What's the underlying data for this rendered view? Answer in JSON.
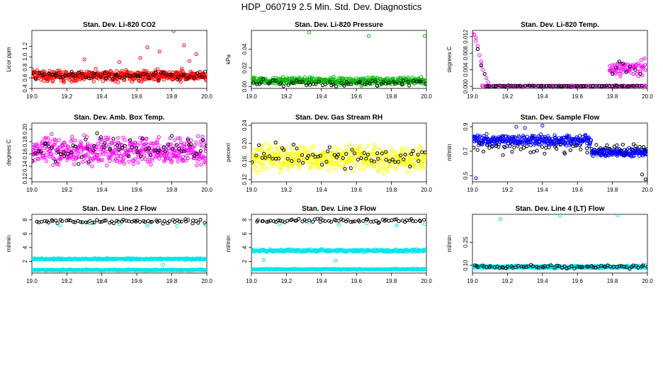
{
  "figure": {
    "title": "HDP_060719  2.5 Min. Std. Dev. Diagnostics"
  },
  "chart_data": [
    {
      "type": "scatter",
      "title": "Stan. Dev. Li-820 CO2",
      "ylabel": "Licor ppm",
      "xlim": [
        19.0,
        20.0
      ],
      "ylim": [
        0.4,
        1.5
      ],
      "xticks": [
        "19.0",
        "19.2",
        "19.4",
        "19.6",
        "19.8",
        "20.0"
      ],
      "xtick_values": [
        19.0,
        19.2,
        19.4,
        19.6,
        19.8,
        20.0
      ],
      "yticks": [
        "0.4",
        "0.6",
        "0.8",
        "1.0",
        "1.2"
      ],
      "ytick_values": [
        0.4,
        0.6,
        0.8,
        1.0,
        1.2
      ],
      "series": [
        {
          "name": "dense",
          "color": "#ff0000",
          "gen": {
            "n": 500,
            "base": 0.64,
            "spread": 0.08,
            "seed": 1
          }
        },
        {
          "name": "sparse",
          "color": "#000000",
          "gen": {
            "n": 60,
            "base": 0.65,
            "spread": 0.07,
            "seed": 2
          }
        },
        {
          "name": "outliers",
          "color": "#ff0000",
          "x": [
            19.81,
            19.66,
            19.87,
            19.73,
            19.94,
            19.62,
            19.9,
            19.5,
            19.3
          ],
          "values": [
            1.49,
            1.18,
            1.22,
            1.1,
            1.05,
            0.98,
            0.92,
            0.9,
            0.95
          ]
        }
      ]
    },
    {
      "type": "scatter",
      "title": "Stan. Dev. Li-820 Pressure",
      "ylabel": "kPa",
      "xlim": [
        19.0,
        20.0
      ],
      "ylim": [
        -0.002,
        0.06
      ],
      "xticks": [
        "19.0",
        "19.2",
        "19.4",
        "19.6",
        "19.8",
        "20.0"
      ],
      "xtick_values": [
        19.0,
        19.2,
        19.4,
        19.6,
        19.8,
        20.0
      ],
      "yticks": [
        "0.00",
        "0.02",
        "0.04"
      ],
      "ytick_values": [
        0.0,
        0.02,
        0.04
      ],
      "series": [
        {
          "name": "dense",
          "color": "#00bb00",
          "gen": {
            "n": 420,
            "base": 0.006,
            "spread": 0.003,
            "seed": 3
          }
        },
        {
          "name": "sparse",
          "color": "#000000",
          "gen": {
            "n": 60,
            "base": 0.004,
            "spread": 0.003,
            "seed": 4
          }
        },
        {
          "name": "outliers",
          "color": "#00bb00",
          "x": [
            19.33,
            19.67,
            19.99
          ],
          "values": [
            0.058,
            0.054,
            0.054
          ]
        }
      ]
    },
    {
      "type": "scatter",
      "title": "Stan. Dev. Li-820 Temp.",
      "ylabel": "degrees C",
      "xlim": [
        19.0,
        20.0
      ],
      "ylim": [
        -0.0005,
        0.0135
      ],
      "xticks": [
        "19.0",
        "19.2",
        "19.4",
        "19.6",
        "19.8",
        "20.0"
      ],
      "xtick_values": [
        19.0,
        19.2,
        19.4,
        19.6,
        19.8,
        20.0
      ],
      "yticks": [
        "0.000",
        "0.004",
        "0.008",
        "0.012"
      ],
      "ytick_values": [
        0.0,
        0.004,
        0.008,
        0.012
      ],
      "series": [
        {
          "name": "baseline",
          "color": "#ff00ff",
          "gen": {
            "n": 120,
            "base": 0.0001,
            "spread": 0.0001,
            "seed": 5,
            "xfrom": 19.05,
            "xto": 20.0
          }
        },
        {
          "name": "baseline-black",
          "color": "#000000",
          "gen": {
            "n": 70,
            "base": 0.0001,
            "spread": 0.0001,
            "seed": 6,
            "xfrom": 19.07,
            "xto": 19.97
          }
        },
        {
          "name": "early-spike",
          "color": "#ff00ff",
          "x": [
            19.0,
            19.01,
            19.02,
            19.02,
            19.03,
            19.03,
            19.04,
            19.05,
            19.05,
            19.06,
            19.07,
            19.08,
            19.09
          ],
          "values": [
            0.0128,
            0.0125,
            0.0118,
            0.011,
            0.0098,
            0.009,
            0.0075,
            0.006,
            0.0052,
            0.004,
            0.003,
            0.002,
            0.001
          ]
        },
        {
          "name": "early-black",
          "color": "#000000",
          "x": [
            19.03,
            19.05,
            19.07
          ],
          "values": [
            0.009,
            0.005,
            0.003
          ]
        },
        {
          "name": "late-bump",
          "color": "#ff00ff",
          "gen": {
            "n": 70,
            "base": 0.0045,
            "spread": 0.0015,
            "seed": 7,
            "xfrom": 19.78,
            "xto": 19.99
          }
        },
        {
          "name": "late-black",
          "color": "#000000",
          "x": [
            19.8,
            19.82,
            19.84,
            19.86,
            19.88,
            19.9,
            19.93,
            19.96
          ],
          "values": [
            0.003,
            0.0045,
            0.006,
            0.0055,
            0.0035,
            0.0048,
            0.004,
            0.003
          ]
        }
      ]
    },
    {
      "type": "scatter",
      "title": "Stan. Dev. Amb. Box Temp.",
      "ylabel": "degrees C",
      "xlim": [
        19.0,
        20.0
      ],
      "ylim": [
        0.115,
        0.21
      ],
      "xticks": [
        "19.0",
        "19.2",
        "19.4",
        "19.6",
        "19.8",
        "20.0"
      ],
      "xtick_values": [
        19.0,
        19.2,
        19.4,
        19.6,
        19.8,
        20.0
      ],
      "yticks": [
        "0.12",
        "0.14",
        "0.16",
        "0.18",
        "0.20"
      ],
      "ytick_values": [
        0.12,
        0.14,
        0.16,
        0.18,
        0.2
      ],
      "series": [
        {
          "name": "dense",
          "color": "#ff00ff",
          "gen": {
            "n": 480,
            "base": 0.165,
            "spread": 0.018,
            "seed": 8
          }
        },
        {
          "name": "sparse",
          "color": "#000000",
          "gen": {
            "n": 65,
            "base": 0.168,
            "spread": 0.017,
            "seed": 9
          }
        }
      ]
    },
    {
      "type": "scatter",
      "title": "Stan. Dev. Gas Stream RH",
      "ylabel": "percent",
      "xlim": [
        19.0,
        20.0
      ],
      "ylim": [
        0.115,
        0.245
      ],
      "xticks": [
        "19.0",
        "19.2",
        "19.4",
        "19.6",
        "19.8",
        "20.0"
      ],
      "xtick_values": [
        19.0,
        19.2,
        19.4,
        19.6,
        19.8,
        20.0
      ],
      "yticks": [
        "0.12",
        "0.16",
        "0.20",
        "0.24"
      ],
      "ytick_values": [
        0.12,
        0.16,
        0.2,
        0.24
      ],
      "series": [
        {
          "name": "dense",
          "color": "#ffff00",
          "gen": {
            "n": 480,
            "base": 0.168,
            "spread": 0.022,
            "seed": 10
          }
        },
        {
          "name": "sparse",
          "color": "#000000",
          "gen": {
            "n": 65,
            "base": 0.17,
            "spread": 0.02,
            "seed": 11
          }
        }
      ]
    },
    {
      "type": "scatter",
      "title": "Stan. Dev. Sample Flow",
      "ylabel": "ml/min",
      "xlim": [
        19.0,
        20.0
      ],
      "ylim": [
        0.45,
        0.93
      ],
      "xticks": [
        "19.0",
        "19.2",
        "19.4",
        "19.6",
        "19.8",
        "20.0"
      ],
      "xtick_values": [
        19.0,
        19.2,
        19.4,
        19.6,
        19.8,
        20.0
      ],
      "yticks": [
        "0.5",
        "0.7",
        "0.9"
      ],
      "ytick_values": [
        0.5,
        0.7,
        0.9
      ],
      "series": [
        {
          "name": "early",
          "color": "#0000ff",
          "gen": {
            "n": 300,
            "base": 0.79,
            "spread": 0.035,
            "seed": 12,
            "xfrom": 19.0,
            "xto": 19.68
          }
        },
        {
          "name": "late",
          "color": "#0000ff",
          "gen": {
            "n": 150,
            "base": 0.69,
            "spread": 0.03,
            "seed": 13,
            "xfrom": 19.68,
            "xto": 20.0
          }
        },
        {
          "name": "black",
          "color": "#000000",
          "gen": {
            "n": 55,
            "base": 0.72,
            "spread": 0.04,
            "seed": 14
          }
        },
        {
          "name": "outliers",
          "color": "#0000ff",
          "x": [
            19.02,
            19.25,
            19.4,
            19.3
          ],
          "values": [
            0.48,
            0.9,
            0.91,
            0.89
          ]
        },
        {
          "name": "outliers-black",
          "color": "#000000",
          "x": [
            19.97,
            19.99
          ],
          "values": [
            0.51,
            0.47
          ]
        }
      ]
    },
    {
      "type": "scatter",
      "title": "Stan. Dev. Line 2 Flow",
      "ylabel": "ml/min",
      "xlim": [
        19.0,
        20.0
      ],
      "ylim": [
        0.3,
        8.8
      ],
      "xticks": [
        "19.0",
        "19.2",
        "19.4",
        "19.6",
        "19.8",
        "20.0"
      ],
      "xtick_values": [
        19.0,
        19.2,
        19.4,
        19.6,
        19.8,
        20.0
      ],
      "yticks": [
        "2",
        "4",
        "6",
        "8"
      ],
      "ytick_values": [
        2,
        4,
        6,
        8
      ],
      "series": [
        {
          "name": "band-high",
          "color": "#00e5ee",
          "gen": {
            "n": 320,
            "base": 2.35,
            "spread": 0.1,
            "seed": 15
          }
        },
        {
          "name": "band-low",
          "color": "#00e5ee",
          "gen": {
            "n": 320,
            "base": 0.75,
            "spread": 0.07,
            "seed": 16
          }
        },
        {
          "name": "top-black",
          "color": "#000000",
          "gen": {
            "n": 70,
            "base": 7.8,
            "spread": 0.25,
            "seed": 17,
            "xfrom": 19.02,
            "xto": 19.99
          }
        },
        {
          "name": "top-cyan",
          "color": "#00e5ee",
          "x": [
            19.16,
            19.33,
            19.5,
            19.66,
            19.83,
            19.99,
            19.75
          ],
          "values": [
            7.2,
            7.5,
            7.4,
            7.2,
            7.1,
            7.3,
            1.5
          ]
        }
      ]
    },
    {
      "type": "scatter",
      "title": "Stan. Dev. Line 3 Flow",
      "ylabel": "ml/min",
      "xlim": [
        19.0,
        20.0
      ],
      "ylim": [
        0.3,
        8.8
      ],
      "xticks": [
        "19.0",
        "19.2",
        "19.4",
        "19.6",
        "19.8",
        "20.0"
      ],
      "xtick_values": [
        19.0,
        19.2,
        19.4,
        19.6,
        19.8,
        20.0
      ],
      "yticks": [
        "2",
        "4",
        "6",
        "8"
      ],
      "ytick_values": [
        2,
        4,
        6,
        8
      ],
      "series": [
        {
          "name": "band-high",
          "color": "#00e5ee",
          "gen": {
            "n": 320,
            "base": 3.55,
            "spread": 0.15,
            "seed": 18
          }
        },
        {
          "name": "band-low",
          "color": "#00e5ee",
          "gen": {
            "n": 320,
            "base": 0.85,
            "spread": 0.07,
            "seed": 19
          }
        },
        {
          "name": "top-black",
          "color": "#000000",
          "gen": {
            "n": 70,
            "base": 7.9,
            "spread": 0.25,
            "seed": 20,
            "xfrom": 19.02,
            "xto": 19.99
          }
        },
        {
          "name": "top-cyan",
          "color": "#00e5ee",
          "x": [
            19.16,
            19.33,
            19.5,
            19.66,
            19.83,
            19.99,
            19.07,
            19.48
          ],
          "values": [
            7.4,
            7.6,
            7.3,
            7.5,
            7.2,
            7.4,
            2.2,
            2.1
          ]
        }
      ]
    },
    {
      "type": "scatter",
      "title": "Stan. Dev. Line 4 (LT) Flow",
      "ylabel": "ml/min",
      "xlim": [
        19.0,
        20.0
      ],
      "ylim": [
        0.05,
        0.43
      ],
      "xticks": [
        "19.0",
        "19.2",
        "19.4",
        "19.6",
        "19.8",
        "20.0"
      ],
      "xtick_values": [
        19.0,
        19.2,
        19.4,
        19.6,
        19.8,
        20.0
      ],
      "yticks": [
        "0.10",
        "0.25"
      ],
      "ytick_values": [
        0.1,
        0.25
      ],
      "series": [
        {
          "name": "dense",
          "color": "#00e5ee",
          "gen": {
            "n": 420,
            "base": 0.09,
            "spread": 0.008,
            "seed": 21
          }
        },
        {
          "name": "sparse",
          "color": "#000000",
          "gen": {
            "n": 70,
            "base": 0.09,
            "spread": 0.009,
            "seed": 22
          }
        },
        {
          "name": "outliers",
          "color": "#00e5ee",
          "x": [
            19.16,
            19.5,
            19.83
          ],
          "values": [
            0.4,
            0.42,
            0.425
          ]
        }
      ]
    }
  ]
}
